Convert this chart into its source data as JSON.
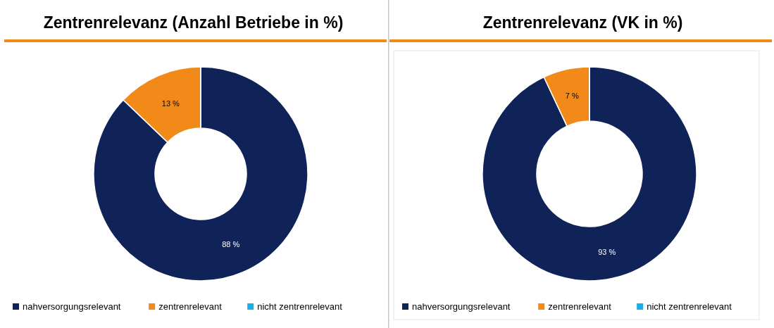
{
  "chart_data": [
    {
      "type": "donut",
      "title": "Zentrenrelevanz (Anzahl Betriebe in %)",
      "categories": [
        "nahversorgungsrelevant",
        "zentrenrelevant",
        "nicht zentrenrelevant"
      ],
      "values": [
        88,
        13,
        0
      ],
      "colors": [
        "#0f2358",
        "#f28a1a",
        "#19aee6"
      ],
      "value_labels": [
        "88 %",
        "13 %",
        null
      ],
      "legend": "bottom"
    },
    {
      "type": "donut",
      "title": "Zentrenrelevanz  (VK in %)",
      "categories": [
        "nahversorgungsrelevant",
        "zentrenrelevant",
        "nicht zentrenrelevant"
      ],
      "values": [
        93,
        7,
        0
      ],
      "colors": [
        "#0f2358",
        "#f28a1a",
        "#19aee6"
      ],
      "value_labels": [
        "93 %",
        "7 %",
        null
      ],
      "legend": "bottom"
    }
  ]
}
